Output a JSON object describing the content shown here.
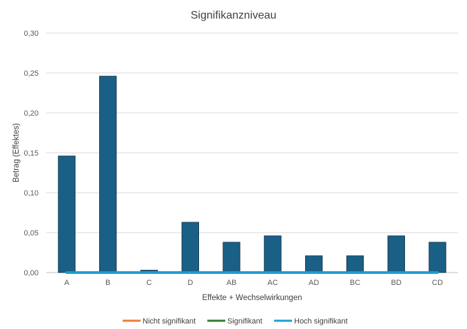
{
  "chart_data": {
    "type": "bar",
    "title": "Signifikanzniveau",
    "xlabel": "Effekte + Wechselwirkungen",
    "ylabel": "Betrag (Effektes)",
    "ylim": [
      0,
      0.3
    ],
    "yticks": [
      "0,00",
      "0,05",
      "0,10",
      "0,15",
      "0,20",
      "0,25",
      "0,30"
    ],
    "categories": [
      "A",
      "B",
      "C",
      "D",
      "AB",
      "AC",
      "AD",
      "BC",
      "BD",
      "CD"
    ],
    "values": [
      0.146,
      0.246,
      0.003,
      0.063,
      0.038,
      0.046,
      0.021,
      0.021,
      0.046,
      0.038
    ],
    "bar_color": "#1a5f85",
    "grid": true,
    "lines": [
      {
        "name": "Nicht signifikant",
        "color": "#ed7d31",
        "values": [
          0,
          0,
          0,
          0,
          0,
          0,
          0,
          0,
          0,
          0
        ]
      },
      {
        "name": "Signifikant",
        "color": "#2e7d32",
        "values": [
          0,
          0,
          0,
          0,
          0,
          0,
          0,
          0,
          0,
          0
        ]
      },
      {
        "name": "Hoch signifikant",
        "color": "#1b9fcf",
        "values": [
          0,
          0,
          0,
          0,
          0,
          0,
          0,
          0,
          0,
          0
        ]
      }
    ],
    "legend_position": "bottom"
  }
}
